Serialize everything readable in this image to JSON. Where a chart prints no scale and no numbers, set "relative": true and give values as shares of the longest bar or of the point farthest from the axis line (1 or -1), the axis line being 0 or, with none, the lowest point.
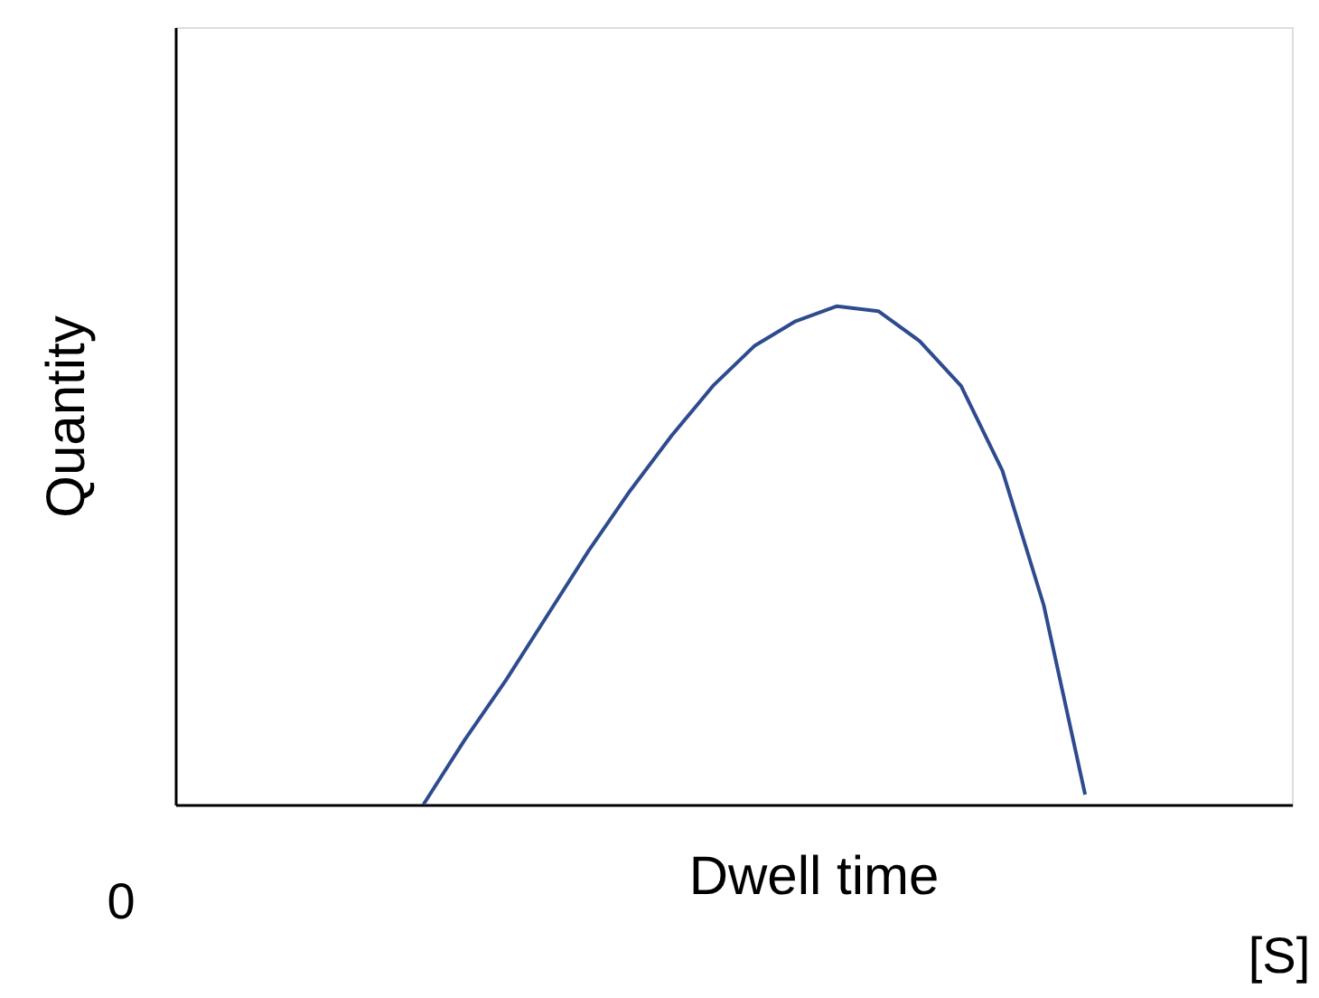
{
  "chart_data": {
    "type": "line",
    "relative": true,
    "xlabel": "Dwell time",
    "ylabel": "Quantity",
    "tick_labels": false,
    "categories": [
      null,
      null,
      null,
      null,
      null,
      null,
      null,
      null,
      null,
      null,
      null,
      null,
      null,
      null,
      null,
      null,
      null,
      null,
      null,
      null,
      null,
      null,
      null,
      null,
      null,
      null,
      null,
      null
    ],
    "series": [
      {
        "color": "#2f4b8f",
        "values": [
          null,
          null,
          null,
          null,
          null,
          null,
          0,
          0.13,
          0.25,
          0.38,
          0.51,
          0.63,
          0.74,
          0.84,
          0.92,
          0.97,
          1.0,
          0.99,
          0.93,
          0.84,
          0.67,
          0.4,
          0.02,
          null,
          null,
          null,
          null,
          null
        ]
      }
    ],
    "annotations": [
      "0",
      "[S]"
    ]
  }
}
